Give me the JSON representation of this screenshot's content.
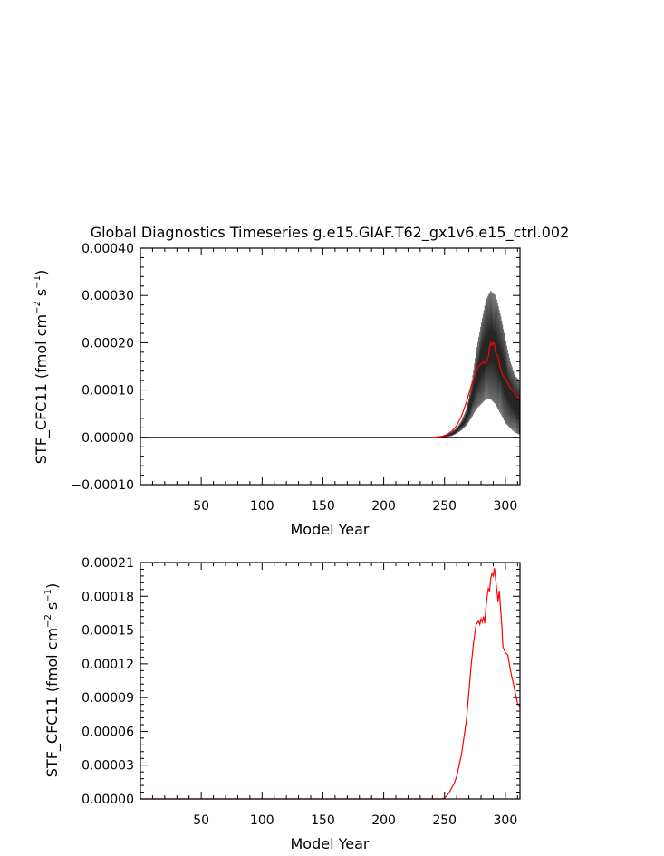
{
  "chart_data": [
    {
      "type": "line",
      "title": "Global Diagnostics Timeseries g.e15.GIAF.T62_gx1v6.e15_ctrl.002",
      "xlabel": "Model Year",
      "ylabel": "STF_CFC11 (fmol cm",
      "ylabel_units": {
        "exp1": "−2",
        "mid": " s",
        "exp2": "−1",
        "close": ")"
      },
      "xlim": [
        0,
        312
      ],
      "ylim": [
        -0.0001,
        0.0004
      ],
      "xticks": [
        50,
        100,
        150,
        200,
        250,
        300
      ],
      "xtick_labels": [
        "50",
        "100",
        "150",
        "200",
        "250",
        "300"
      ],
      "yticks": [
        -0.0001,
        0,
        0.0001,
        0.0002,
        0.0003,
        0.0004
      ],
      "ytick_labels": [
        "−0.00010",
        "0.00000",
        "0.00010",
        "0.00020",
        "0.00030",
        "0.00040"
      ],
      "zero_line": true,
      "series": [
        {
          "color": "#000000",
          "x": [
            0,
            245,
            248,
            252,
            256,
            260,
            264,
            268,
            272,
            276,
            280,
            284,
            288,
            292,
            296,
            300,
            304,
            308,
            312
          ],
          "upper": [
            0,
            0,
            2e-06,
            6e-06,
            1.2e-05,
            2e-05,
            3.5e-05,
            6e-05,
            0.00011,
            0.00018,
            0.00024,
            0.00029,
            0.00031,
            0.0003,
            0.00026,
            0.00021,
            0.00016,
            0.00013,
            0.00012
          ],
          "lower": [
            0,
            0,
            0,
            1e-06,
            3e-06,
            8e-06,
            1.5e-05,
            2.5e-05,
            4e-05,
            6e-05,
            7e-05,
            8e-05,
            8e-05,
            7e-05,
            5e-05,
            3e-05,
            2e-05,
            1e-05,
            5e-06
          ]
        },
        {
          "color": "#ff0000",
          "x": [
            240,
            248,
            252,
            256,
            260,
            264,
            268,
            272,
            276,
            278,
            280,
            282,
            284,
            285,
            286,
            287,
            288,
            289,
            290,
            291,
            292,
            294,
            296,
            298,
            300,
            302,
            304,
            306,
            308,
            310,
            312
          ],
          "y": [
            0,
            2e-06,
            6e-06,
            1.3e-05,
            2.5e-05,
            4.5e-05,
            7.5e-05,
            0.00011,
            0.00014,
            0.00015,
            0.000155,
            0.00016,
            0.000155,
            0.000165,
            0.00017,
            0.00019,
            0.0002,
            0.000195,
            0.0002,
            0.000198,
            0.00018,
            0.00017,
            0.000145,
            0.00013,
            0.000125,
            0.000115,
            0.000105,
            0.0001,
            9e-05,
            8.5e-05,
            8.2e-05
          ]
        }
      ]
    },
    {
      "type": "line",
      "title": "",
      "xlabel": "Model Year",
      "ylabel": "STF_CFC11 (fmol cm",
      "ylabel_units": {
        "exp1": "−2",
        "mid": " s",
        "exp2": "−1",
        "close": ")"
      },
      "xlim": [
        0,
        312
      ],
      "ylim": [
        0,
        0.00021
      ],
      "xticks": [
        50,
        100,
        150,
        200,
        250,
        300
      ],
      "xtick_labels": [
        "50",
        "100",
        "150",
        "200",
        "250",
        "300"
      ],
      "yticks": [
        0,
        3e-05,
        6e-05,
        9e-05,
        0.00012,
        0.00015,
        0.00018,
        0.00021
      ],
      "ytick_labels": [
        "0.00000",
        "0.00003",
        "0.00006",
        "0.00009",
        "0.00012",
        "0.00015",
        "0.00018",
        "0.00021"
      ],
      "series": [
        {
          "color": "#ff0000",
          "x": [
            0,
            248,
            250,
            252,
            254,
            256,
            258,
            260,
            262,
            264,
            266,
            268,
            270,
            272,
            274,
            276,
            278,
            279,
            280,
            281,
            282,
            283,
            284,
            285,
            286,
            287,
            288,
            289,
            290,
            291,
            292,
            293,
            294,
            295,
            296,
            297,
            298,
            300,
            302,
            304,
            306,
            308,
            309,
            310,
            312
          ],
          "y": [
            0,
            0,
            1e-06,
            3e-06,
            6e-06,
            1e-05,
            1.4e-05,
            2e-05,
            3e-05,
            4e-05,
            5.5e-05,
            7e-05,
            9.5e-05,
            0.00012,
            0.00014,
            0.000155,
            0.000158,
            0.000155,
            0.00016,
            0.000157,
            0.000162,
            0.000156,
            0.00017,
            0.00018,
            0.000187,
            0.000185,
            0.000196,
            0.0002,
            0.000198,
            0.000205,
            0.000195,
            0.000185,
            0.000175,
            0.000185,
            0.00017,
            0.000155,
            0.000135,
            0.00013,
            0.000128,
            0.000115,
            0.000105,
            9.5e-05,
            9e-05,
            8.5e-05,
            8.2e-05
          ]
        }
      ]
    }
  ]
}
